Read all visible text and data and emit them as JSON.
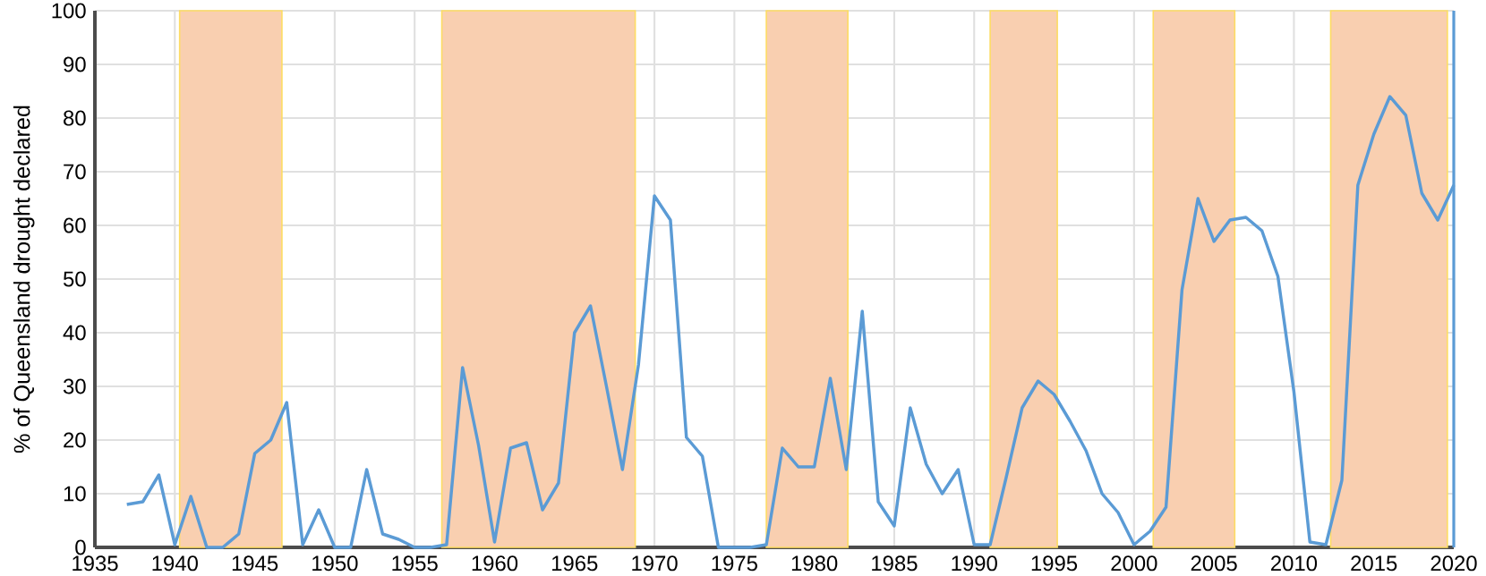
{
  "chart_data": {
    "type": "line",
    "ylabel": "% of Queensland drought declared",
    "x": [
      1937,
      1938,
      1939,
      1940,
      1941,
      1942,
      1943,
      1944,
      1945,
      1946,
      1947,
      1948,
      1949,
      1950,
      1951,
      1952,
      1953,
      1954,
      1955,
      1956,
      1957,
      1958,
      1959,
      1960,
      1961,
      1962,
      1963,
      1964,
      1965,
      1966,
      1967,
      1968,
      1969,
      1970,
      1971,
      1972,
      1973,
      1974,
      1975,
      1976,
      1977,
      1978,
      1979,
      1980,
      1981,
      1982,
      1983,
      1984,
      1985,
      1986,
      1987,
      1988,
      1989,
      1990,
      1991,
      1992,
      1993,
      1994,
      1995,
      1996,
      1997,
      1998,
      1999,
      2000,
      2001,
      2002,
      2003,
      2004,
      2005,
      2006,
      2007,
      2008,
      2009,
      2010,
      2011,
      2012,
      2013,
      2014,
      2015,
      2016,
      2017,
      2018,
      2019,
      2020
    ],
    "series": [
      {
        "color": "#5b9bd5",
        "values": [
          8,
          8.5,
          13.5,
          0.5,
          9.5,
          0,
          0,
          2.5,
          17.5,
          20,
          27,
          0.5,
          7,
          0,
          0,
          14.5,
          2.5,
          1.5,
          0,
          0,
          0.5,
          33.5,
          19,
          1,
          18.5,
          19.5,
          7,
          12,
          40,
          45,
          30,
          14.5,
          34,
          65.5,
          61,
          20.5,
          17,
          0,
          0,
          0,
          0.5,
          18.5,
          15,
          15,
          31.5,
          14.5,
          44,
          8.5,
          4,
          26,
          15.5,
          10,
          14.5,
          0.5,
          0.5,
          13,
          26,
          31,
          28.5,
          23.5,
          18,
          10,
          6.5,
          0.5,
          3,
          7.5,
          48,
          65,
          57,
          61,
          61.5,
          59,
          50.5,
          29,
          1,
          0.5,
          12.5,
          67.5,
          77,
          84,
          80.5,
          66,
          61,
          67.5
        ]
      }
    ],
    "xlim": [
      1935,
      2020
    ],
    "ylim": [
      0,
      100
    ],
    "xticks": [
      1935,
      1940,
      1945,
      1950,
      1955,
      1960,
      1965,
      1970,
      1975,
      1980,
      1985,
      1990,
      1995,
      2000,
      2005,
      2010,
      2015,
      2020
    ],
    "yticks": [
      0,
      10,
      20,
      30,
      40,
      50,
      60,
      70,
      80,
      90,
      100
    ],
    "grid": true,
    "marker": "none",
    "line_style": "solid",
    "bands": [
      {
        "axis": "x",
        "from": 1940.3,
        "to": 1946.7,
        "color": "#f9cfb0"
      },
      {
        "axis": "x",
        "from": 1956.7,
        "to": 1968.8,
        "color": "#f9cfb0"
      },
      {
        "axis": "x",
        "from": 1977,
        "to": 1982.1,
        "color": "#f9cfb0"
      },
      {
        "axis": "x",
        "from": 1991,
        "to": 1995.2,
        "color": "#f9cfb0"
      },
      {
        "axis": "x",
        "from": 2001.2,
        "to": 2006.3,
        "color": "#f9cfb0"
      },
      {
        "axis": "x",
        "from": 2012.3,
        "to": 2019.6,
        "color": "#f9cfb0"
      }
    ],
    "ref_lines": [
      {
        "axis": "x",
        "value": 2020,
        "color": "#5b9bd5"
      }
    ]
  }
}
